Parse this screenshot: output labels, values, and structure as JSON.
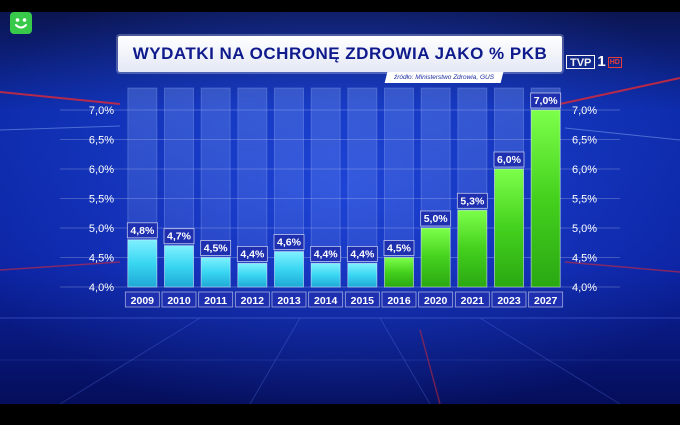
{
  "header": {
    "title": "WYDATKI NA OCHRONĘ ZDROWIA JAKO % PKB",
    "source": "źródło: Ministerstwo Zdrowia, GUS"
  },
  "channel_logo": {
    "letters": "TVP",
    "number": "1",
    "badge": "HD"
  },
  "corner_icon": "smiley-face-icon",
  "colors": {
    "background": "#0a1a8a",
    "title_text": "#0f1a8c",
    "label_box": "#1e2fb0",
    "bar_cyan": "#39d6f2",
    "bar_green": "#44d11e",
    "accent_red": "#d42a3a",
    "corner_icon": "#39c94a"
  },
  "chart_data": {
    "type": "bar",
    "categories": [
      "2009",
      "2010",
      "2011",
      "2012",
      "2013",
      "2014",
      "2015",
      "2016",
      "2020",
      "2021",
      "2023",
      "2027"
    ],
    "values": [
      4.8,
      4.7,
      4.5,
      4.4,
      4.6,
      4.4,
      4.4,
      4.5,
      5.0,
      5.3,
      6.0,
      7.0
    ],
    "value_labels": [
      "4,8%",
      "4,7%",
      "4,5%",
      "4,4%",
      "4,6%",
      "4,4%",
      "4,4%",
      "4,5%",
      "5,0%",
      "5,3%",
      "6,0%",
      "7,0%"
    ],
    "bar_colors": [
      "cyan",
      "cyan",
      "cyan",
      "cyan",
      "cyan",
      "cyan",
      "cyan",
      "green",
      "green",
      "green",
      "green",
      "green"
    ],
    "ylim": [
      4.0,
      7.0
    ],
    "yticks": [
      4.0,
      4.5,
      5.0,
      5.5,
      6.0,
      6.5,
      7.0
    ],
    "ytick_labels": [
      "4,0%",
      "4,5%",
      "5,0%",
      "5,5%",
      "6,0%",
      "6,5%",
      "7,0%"
    ],
    "axis_sides": [
      "left",
      "right"
    ],
    "grid": true,
    "title": "WYDATKI NA OCHRONĘ ZDROWIA JAKO % PKB",
    "xlabel": "",
    "ylabel": ""
  }
}
